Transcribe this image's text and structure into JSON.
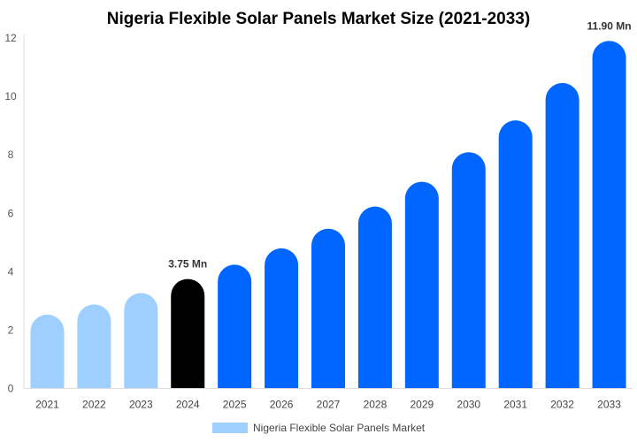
{
  "chart_data": {
    "type": "bar",
    "title": "Nigeria Flexible Solar Panels Market Size (2021-2033)",
    "xlabel": "",
    "ylabel": "",
    "ylim": [
      0,
      12
    ],
    "yticks": [
      "0",
      "2",
      "4",
      "6",
      "8",
      "10",
      "12"
    ],
    "grid": false,
    "legend_position": "bottom",
    "categories": [
      "2021",
      "2022",
      "2023",
      "2024",
      "2025",
      "2026",
      "2027",
      "2028",
      "2029",
      "2030",
      "2031",
      "2032",
      "2033"
    ],
    "series": [
      {
        "name": "Nigeria Flexible Solar Panels Market",
        "values": [
          2.53,
          2.88,
          3.27,
          3.75,
          4.24,
          4.8,
          5.47,
          6.23,
          7.08,
          8.09,
          9.18,
          10.46,
          11.9
        ]
      }
    ],
    "bar_colors": [
      "#9ecfff",
      "#9ecfff",
      "#9ecfff",
      "#000000",
      "#0066ff",
      "#0066ff",
      "#0066ff",
      "#0066ff",
      "#0066ff",
      "#0066ff",
      "#0066ff",
      "#0066ff",
      "#0066ff"
    ],
    "legend_color": "#9ecfff",
    "data_labels": [
      {
        "category": "2024",
        "text": "3.75 Mn"
      },
      {
        "category": "2033",
        "text": "11.90 Mn"
      }
    ]
  }
}
